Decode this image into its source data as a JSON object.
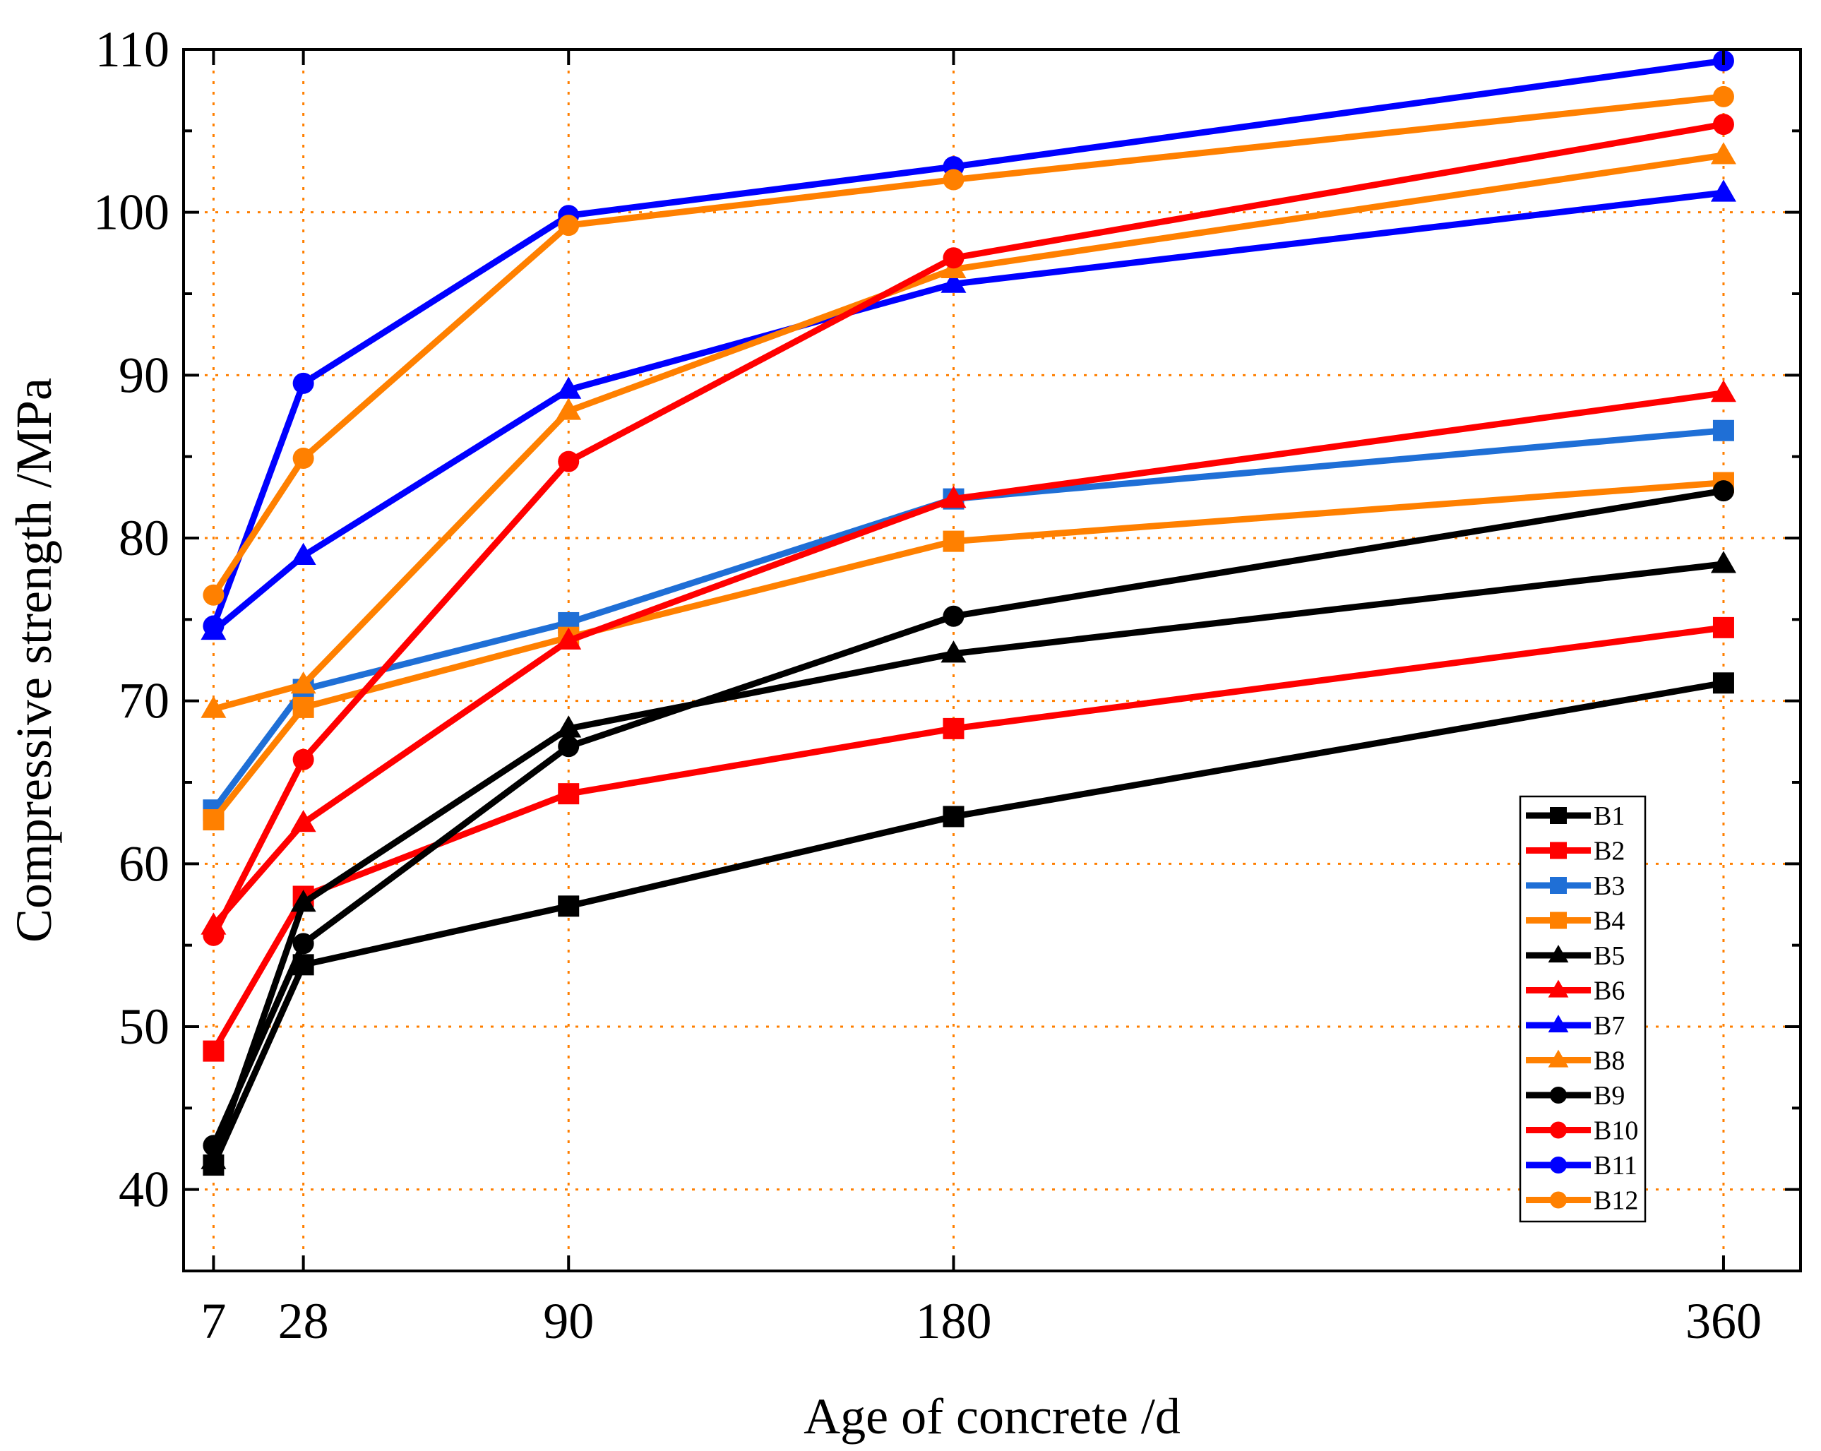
{
  "chart_data": {
    "type": "line",
    "title": "",
    "xlabel": "Age of concrete /d",
    "ylabel": "Compressive strength /MPa",
    "x": [
      7,
      28,
      90,
      180,
      360
    ],
    "xticks": [
      "7",
      "28",
      "90",
      "180",
      "360"
    ],
    "xlim": [
      0,
      378
    ],
    "ylim": [
      35,
      110
    ],
    "yticks": [
      "40",
      "50",
      "60",
      "70",
      "80",
      "90",
      "100",
      "110"
    ],
    "grid": true,
    "grid_color": "#ff7f00",
    "legend_position": "bottom-right",
    "series": [
      {
        "name": "B1",
        "marker": "square",
        "color": "#000000",
        "values": [
          41.5,
          53.8,
          57.4,
          62.9,
          71.1
        ]
      },
      {
        "name": "B2",
        "marker": "square",
        "color": "#ff0000",
        "values": [
          48.5,
          58.0,
          64.3,
          68.3,
          74.5
        ]
      },
      {
        "name": "B3",
        "marker": "square",
        "color": "#1f6fd6",
        "values": [
          63.3,
          70.7,
          74.8,
          82.4,
          86.6
        ]
      },
      {
        "name": "B4",
        "marker": "square",
        "color": "#ff8000",
        "values": [
          62.7,
          69.6,
          73.9,
          79.8,
          83.4
        ]
      },
      {
        "name": "B5",
        "marker": "triangle",
        "color": "#000000",
        "values": [
          41.8,
          57.6,
          68.3,
          72.9,
          78.4
        ]
      },
      {
        "name": "B6",
        "marker": "triangle",
        "color": "#ff0000",
        "values": [
          56.2,
          62.5,
          73.7,
          82.4,
          88.9
        ]
      },
      {
        "name": "B7",
        "marker": "triangle",
        "color": "#0000ff",
        "values": [
          74.3,
          78.9,
          89.1,
          95.6,
          101.2
        ]
      },
      {
        "name": "B8",
        "marker": "triangle",
        "color": "#ff8000",
        "values": [
          69.5,
          71.0,
          87.8,
          96.5,
          103.5
        ]
      },
      {
        "name": "B9",
        "marker": "circle",
        "color": "#000000",
        "values": [
          42.7,
          55.1,
          67.2,
          75.2,
          82.9
        ]
      },
      {
        "name": "B10",
        "marker": "circle",
        "color": "#ff0000",
        "values": [
          55.6,
          66.4,
          84.7,
          97.2,
          105.4
        ]
      },
      {
        "name": "B11",
        "marker": "circle",
        "color": "#0000ff",
        "values": [
          74.6,
          89.5,
          99.8,
          102.8,
          109.3
        ]
      },
      {
        "name": "B12",
        "marker": "circle",
        "color": "#ff8000",
        "values": [
          76.5,
          84.9,
          99.2,
          102.0,
          107.1
        ]
      }
    ]
  }
}
